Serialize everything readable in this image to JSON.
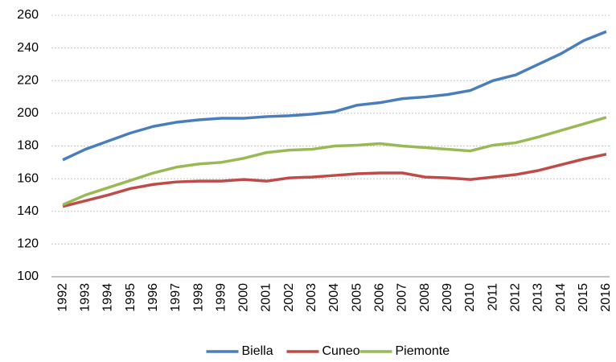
{
  "chart_data": {
    "type": "line",
    "categories": [
      "1992",
      "1993",
      "1994",
      "1995",
      "1996",
      "1997",
      "1998",
      "1999",
      "2000",
      "2001",
      "2002",
      "2003",
      "2004",
      "2005",
      "2006",
      "2007",
      "2008",
      "2009",
      "2010",
      "2011",
      "2012",
      "2013",
      "2014",
      "2015",
      "2016"
    ],
    "series": [
      {
        "name": "Biella",
        "color": "#4a7ebb",
        "values": [
          171.5,
          178,
          183,
          188,
          192,
          194.5,
          196,
          197,
          197,
          198,
          198.5,
          199.5,
          201,
          205,
          206.5,
          209,
          210,
          211.5,
          214,
          220,
          223.5,
          230,
          236.5,
          244.5,
          250
        ]
      },
      {
        "name": "Cuneo",
        "color": "#be4b48",
        "values": [
          143,
          146.5,
          150,
          154,
          156.5,
          158,
          158.5,
          158.5,
          159.5,
          158.5,
          160.5,
          161,
          162,
          163,
          163.5,
          163.5,
          161,
          160.5,
          159.5,
          161,
          162.5,
          165,
          168.5,
          172,
          175
        ]
      },
      {
        "name": "Piemonte",
        "color": "#98b954",
        "values": [
          144,
          150,
          154.5,
          159,
          163.5,
          167,
          169,
          170,
          172.5,
          176,
          177.5,
          178,
          180,
          180.5,
          181.5,
          180,
          179,
          178,
          177,
          180.5,
          182,
          185.5,
          189.5,
          193.5,
          197.5
        ]
      }
    ],
    "ylim": [
      100,
      260
    ],
    "yticks": [
      100,
      120,
      140,
      160,
      180,
      200,
      220,
      240,
      260
    ],
    "grid": true,
    "legend": "bottom"
  }
}
